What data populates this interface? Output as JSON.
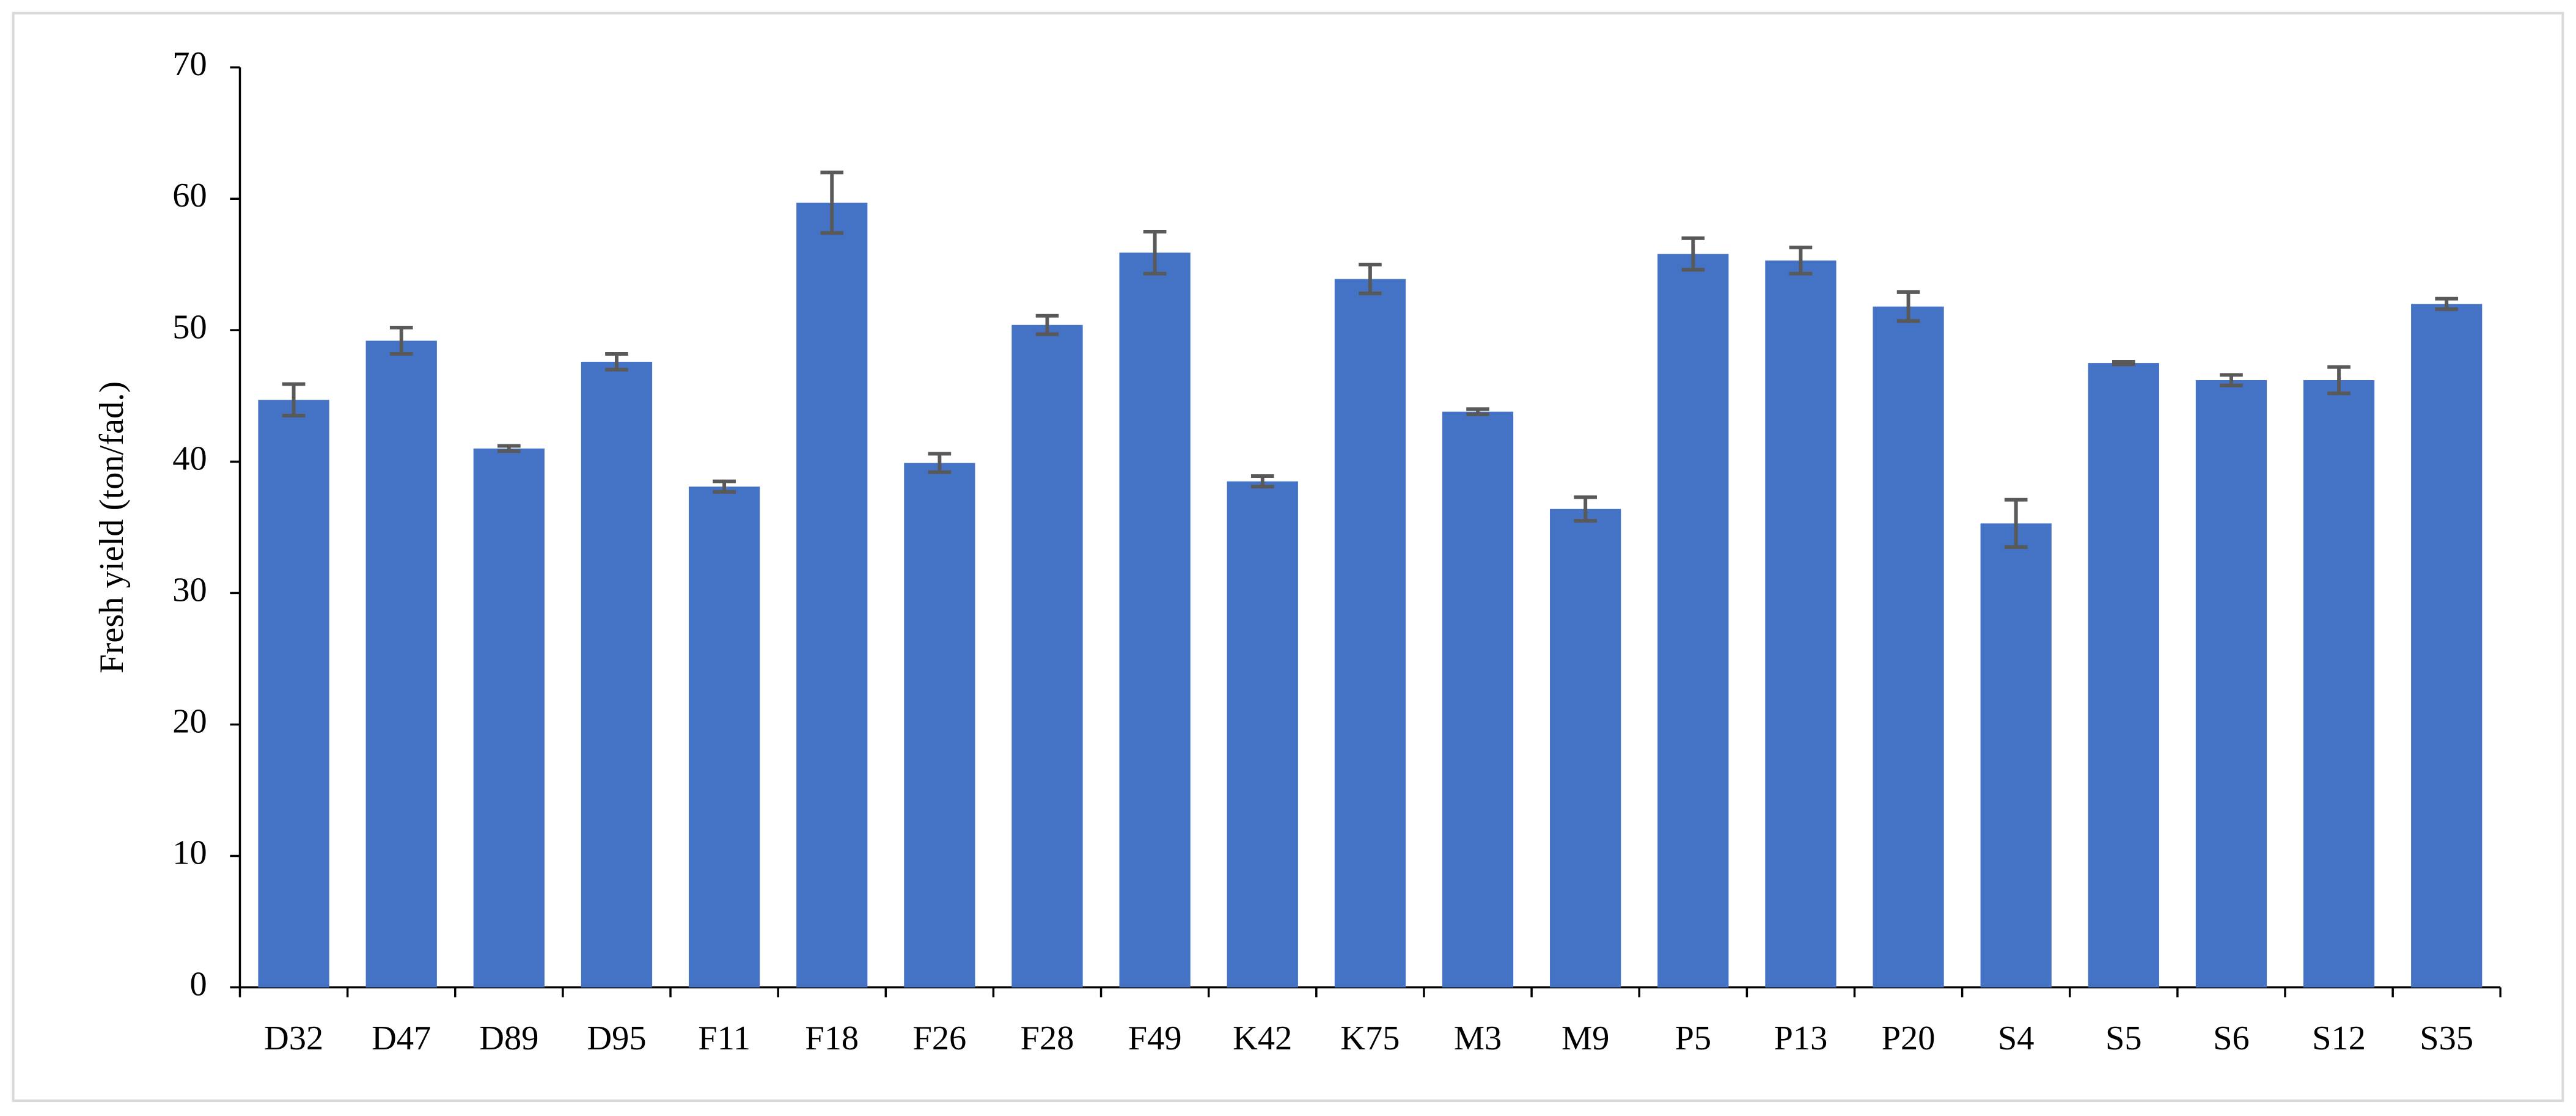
{
  "chart_data": {
    "type": "bar",
    "y_label": "Fresh yield (ton/fad.)",
    "categories": [
      "D32",
      "D47",
      "D89",
      "D95",
      "F11",
      "F18",
      "F26",
      "F28",
      "F49",
      "K42",
      "K75",
      "M3",
      "M9",
      "P5",
      "P13",
      "P20",
      "S4",
      "S5",
      "S6",
      "S12",
      "S35"
    ],
    "values": [
      44.7,
      49.2,
      41.0,
      47.6,
      38.1,
      59.7,
      39.9,
      50.4,
      55.9,
      38.5,
      53.9,
      43.8,
      36.4,
      55.8,
      55.3,
      51.8,
      35.3,
      47.5,
      46.2,
      46.2,
      52.0
    ],
    "errors": [
      1.2,
      1.0,
      0.2,
      0.6,
      0.4,
      2.3,
      0.7,
      0.7,
      1.6,
      0.4,
      1.1,
      0.2,
      0.9,
      1.2,
      1.0,
      1.1,
      1.8,
      0.1,
      0.4,
      1.0,
      0.4
    ],
    "color": "#4472c4",
    "error_color": "#595959",
    "ylim": [
      0,
      70
    ],
    "yticks": [
      0,
      10,
      20,
      30,
      40,
      50,
      60,
      70
    ],
    "grid": false
  }
}
